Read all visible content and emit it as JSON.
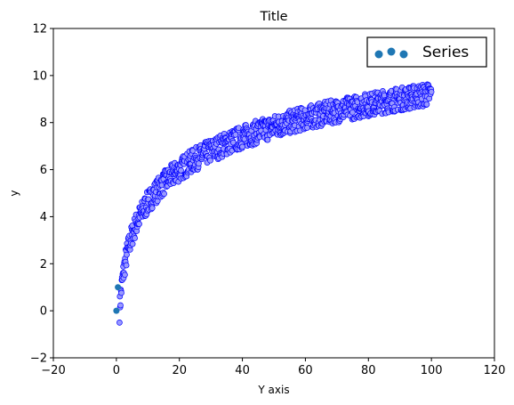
{
  "chart_data": {
    "type": "scatter",
    "title": "Title",
    "xlabel": "Y axis",
    "ylabel": "y",
    "xlim": [
      -20,
      120
    ],
    "ylim": [
      -2,
      12
    ],
    "xticks": [
      -20,
      0,
      20,
      40,
      60,
      80,
      100,
      120
    ],
    "yticks": [
      -2,
      0,
      2,
      4,
      6,
      8,
      10,
      12
    ],
    "grid": false,
    "legend": {
      "placement": "top-right",
      "entries": [
        "Series"
      ]
    },
    "series": [
      {
        "name": "Series",
        "description_of_relation": "y ≈ 2·ln(x) with vertical spread of about ±0.5",
        "x_range": [
          0,
          100
        ],
        "center_points": [
          {
            "x": 0,
            "y": 0
          },
          {
            "x": 1,
            "y": 0.5
          },
          {
            "x": 2,
            "y": 1.4
          },
          {
            "x": 5,
            "y": 3.2
          },
          {
            "x": 10,
            "y": 4.6
          },
          {
            "x": 20,
            "y": 6.0
          },
          {
            "x": 40,
            "y": 7.4
          },
          {
            "x": 60,
            "y": 8.2
          },
          {
            "x": 80,
            "y": 8.8
          },
          {
            "x": 100,
            "y": 9.2
          }
        ],
        "spread": 0.5,
        "point_fill": "#9999ff",
        "point_edge": "#0000ff",
        "legend_marker_color": "#1f77b4"
      }
    ],
    "extra_points": [
      {
        "x": 0,
        "y": 0
      },
      {
        "x": 0.5,
        "y": 1
      }
    ]
  }
}
